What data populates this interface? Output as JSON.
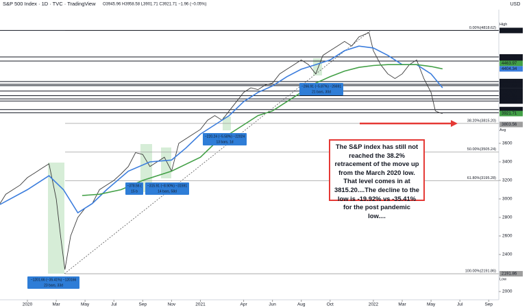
{
  "chart_data": {
    "type": "line",
    "title": "S&P 500 Index · 1D · TVC · TradingView",
    "subtitle": "O3945.96 H3958.58 L3901.71 C3921.71 −1.96 (−0.05%)",
    "currency": "USD",
    "xlim": [
      -1.9,
      32.7
    ],
    "xticks": [
      {
        "value": 0,
        "label": "2020"
      },
      {
        "value": 2,
        "label": "Mar"
      },
      {
        "value": 4,
        "label": "May"
      },
      {
        "value": 6,
        "label": "Jul"
      },
      {
        "value": 8,
        "label": "Sep"
      },
      {
        "value": 10,
        "label": "Nov"
      },
      {
        "value": 12,
        "label": "2021"
      },
      {
        "value": 15,
        "label": "Apr"
      },
      {
        "value": 17,
        "label": "Jun"
      },
      {
        "value": 19,
        "label": "Aug"
      },
      {
        "value": 21,
        "label": "Oct"
      },
      {
        "value": 24,
        "label": "2022"
      },
      {
        "value": 26,
        "label": "Mar"
      },
      {
        "value": 28,
        "label": "May"
      },
      {
        "value": 30,
        "label": "Jul"
      },
      {
        "value": 32,
        "label": "Sep"
      }
    ],
    "ylim": [
      1911,
      5044
    ],
    "yticks": [
      2000,
      2400,
      2600,
      2800,
      3000,
      3200,
      3400,
      3600
    ],
    "series": [
      {
        "color": "#3a3a3a",
        "x": [
          -1.9,
          -1.5,
          -1,
          -0.5,
          0,
          0.5,
          1,
          1.5,
          2,
          2.3,
          2.6,
          3,
          3.5,
          4,
          4.5,
          5,
          5.5,
          6,
          6.5,
          7,
          7.5,
          8,
          8.5,
          9,
          9.5,
          10,
          10.5,
          11,
          11.5,
          12,
          12.5,
          13,
          13.5,
          14,
          14.5,
          15,
          15.5,
          16,
          16.5,
          17,
          17.5,
          18,
          18.5,
          19,
          19.5,
          20,
          20.5,
          21,
          21.5,
          22,
          22.5,
          23,
          23.7,
          24,
          24.5,
          25,
          25.5,
          26,
          26.5,
          27,
          27.5,
          28,
          28.3,
          28.6,
          28.8
        ],
        "values": [
          2950,
          3050,
          3100,
          3150,
          3230,
          3280,
          3330,
          3380,
          3000,
          2600,
          2237,
          2600,
          2800,
          2900,
          2950,
          3100,
          3150,
          3200,
          3270,
          3350,
          3500,
          3480,
          3350,
          3400,
          3450,
          3300,
          3600,
          3650,
          3700,
          3750,
          3850,
          3900,
          3850,
          3950,
          4050,
          4150,
          4200,
          4180,
          4230,
          4250,
          4350,
          4400,
          4450,
          4500,
          4450,
          4350,
          4550,
          4600,
          4650,
          4700,
          4650,
          4750,
          4796,
          4600,
          4450,
          4350,
          4300,
          4350,
          4450,
          4500,
          4300,
          4150,
          3950,
          3930,
          3921.71
        ]
      },
      {
        "color": "#3b7ddd",
        "x": [
          -1.9,
          0,
          1.5,
          2.5,
          3.5,
          4.5,
          5.5,
          7,
          8.5,
          10,
          11,
          12,
          13,
          14,
          15,
          16,
          17,
          18,
          19,
          20,
          21,
          22,
          23,
          24,
          25,
          26,
          27,
          28,
          28.8
        ],
        "values": [
          2940,
          3100,
          3250,
          3100,
          2850,
          2950,
          3100,
          3300,
          3400,
          3420,
          3550,
          3700,
          3800,
          3900,
          4050,
          4150,
          4220,
          4320,
          4400,
          4450,
          4500,
          4600,
          4650,
          4630,
          4550,
          4450,
          4450,
          4350,
          4200
        ]
      },
      {
        "color": "#43a047",
        "x": [
          3.8,
          5,
          6.5,
          8,
          10,
          12,
          13,
          14,
          15,
          16,
          17,
          18,
          19,
          20,
          21,
          22,
          23,
          24,
          25,
          26,
          27,
          28,
          28.8
        ],
        "values": [
          3037,
          3050,
          3100,
          3200,
          3300,
          3450,
          3600,
          3700,
          3800,
          3900,
          3950,
          4050,
          4150,
          4250,
          4320,
          4380,
          4420,
          4440,
          4450,
          4450,
          4450,
          4430,
          4404.34
        ]
      }
    ],
    "levels": [
      {
        "value": 4818.62,
        "color": "#131722",
        "tag": "High"
      },
      {
        "value": 4532.83,
        "color": "#131722"
      },
      {
        "value": 4488.27,
        "color": "#131722"
      },
      {
        "value": 4463.97,
        "color": "#43a047"
      },
      {
        "value": 4404.34,
        "color": "#3b7ddd"
      },
      {
        "value": 4267.11,
        "color": "#131722"
      },
      {
        "value": 4238.04,
        "color": "#131722"
      },
      {
        "value": 4222.62,
        "color": "#131722"
      },
      {
        "value": 4164.4,
        "label": "4164.40",
        "color": "#131722"
      },
      {
        "value": 4114.65,
        "color": "#131722"
      },
      {
        "value": 4080.36,
        "color": "#131722"
      },
      {
        "value": 4056.88,
        "color": "#131722"
      },
      {
        "value": 3964.59,
        "color": "#131722"
      },
      {
        "value": 3930.09,
        "color": "#131722"
      },
      {
        "value": 3921.71,
        "color": "#43a047"
      },
      {
        "value": 3803.56,
        "color": "#9e9e9e",
        "tag": "Avg"
      },
      {
        "value": 2191.86,
        "color": "#9e9e9e",
        "tag": "Low"
      }
    ],
    "fib": [
      {
        "value": 4818.62,
        "label": "0.00%(4818.62)"
      },
      {
        "value": 3815.2,
        "label": "38.20%(3815.20)"
      },
      {
        "value": 3505.24,
        "label": "50.00%(3505.24)"
      },
      {
        "value": 3195.28,
        "label": "61.80%(3195.28)"
      },
      {
        "value": 2191.86,
        "label": "100.00%(2191.86)"
      }
    ],
    "measures": [
      {
        "lines": [
          "−1201.66 (−35.41%) −120166",
          "23 bars, 33d"
        ]
      },
      {
        "lines": [
          "−378.56 (",
          "15 b"
        ]
      },
      {
        "lines": [
          "−315.91 (−8.90%) −31591",
          "14 bars, 58d"
        ]
      },
      {
        "lines": [
          "−220.24 (−5.58%) −22024",
          "13 bars, 1d"
        ]
      },
      {
        "lines": [
          "−266.91 (−5.87%) −26691",
          "21 bars, 30d"
        ]
      }
    ],
    "annotation": "The S&P index has still not reached the 38.2% retracement of the move up from the March 2020 low. That level comes in at 3815.20....The decline to the low is -19.92% vs -35.41% for the post pandemic low...."
  }
}
